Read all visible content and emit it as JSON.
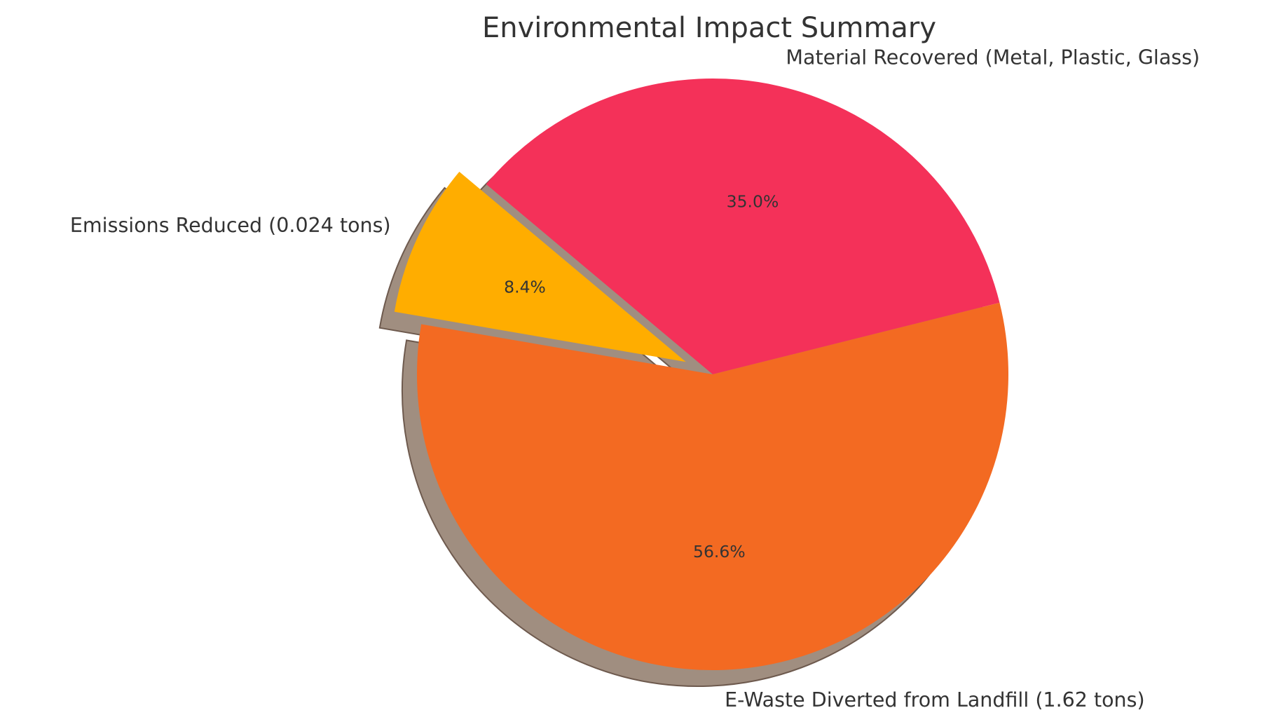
{
  "chart_data": {
    "type": "pie",
    "title": "Environmental Impact Summary",
    "start_angle_deg": 14,
    "counterclock": true,
    "shadow": true,
    "slices": [
      {
        "label": "Material Recovered (Metal, Plastic, Glass)",
        "percent": 35.0,
        "percent_label": "35.0%",
        "color": "#f43159",
        "explode": 0.0
      },
      {
        "label": "Emissions Reduced (0.024 tons)",
        "percent": 8.4,
        "percent_label": "8.4%",
        "color": "#ffad00",
        "explode": 0.1
      },
      {
        "label": "E-Waste Diverted from Landfill (1.62 tons)",
        "percent": 56.6,
        "percent_label": "56.6%",
        "color": "#f36a22",
        "explode": 0.0
      }
    ]
  }
}
